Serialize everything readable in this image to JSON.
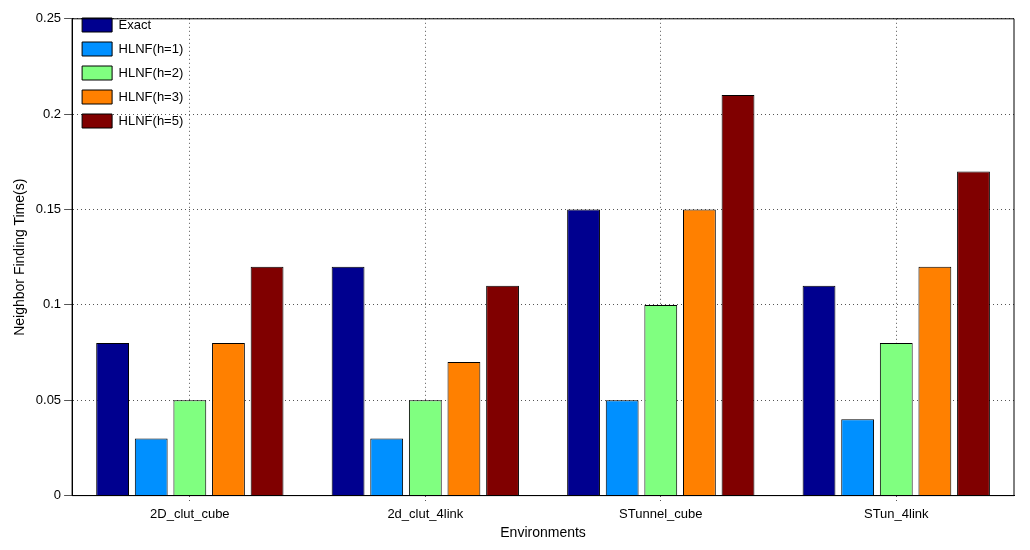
{
  "chart_data": {
    "type": "bar",
    "xlabel": "Environments",
    "ylabel": "Neighbor Finding Time(s)",
    "categories": [
      "2D_clut_cube",
      "2d_clut_4link",
      "STunnel_cube",
      "STun_4link"
    ],
    "series": [
      {
        "name": "Exact",
        "color": "#00008f",
        "values": [
          0.08,
          0.12,
          0.15,
          0.11
        ]
      },
      {
        "name": "HLNF(h=1)",
        "color": "#0090ff",
        "values": [
          0.03,
          0.03,
          0.05,
          0.04
        ]
      },
      {
        "name": "HLNF(h=2)",
        "color": "#80ff80",
        "values": [
          0.05,
          0.05,
          0.1,
          0.08
        ]
      },
      {
        "name": "HLNF(h=3)",
        "color": "#ff8000",
        "values": [
          0.08,
          0.07,
          0.15,
          0.12
        ]
      },
      {
        "name": "HLNF(h=5)",
        "color": "#800000",
        "values": [
          0.12,
          0.11,
          0.21,
          0.17
        ]
      }
    ],
    "ylim": [
      0,
      0.25
    ],
    "yticks": [
      0,
      0.05,
      0.1,
      0.15,
      0.2,
      0.25
    ],
    "grid": true,
    "legend": "top left"
  }
}
